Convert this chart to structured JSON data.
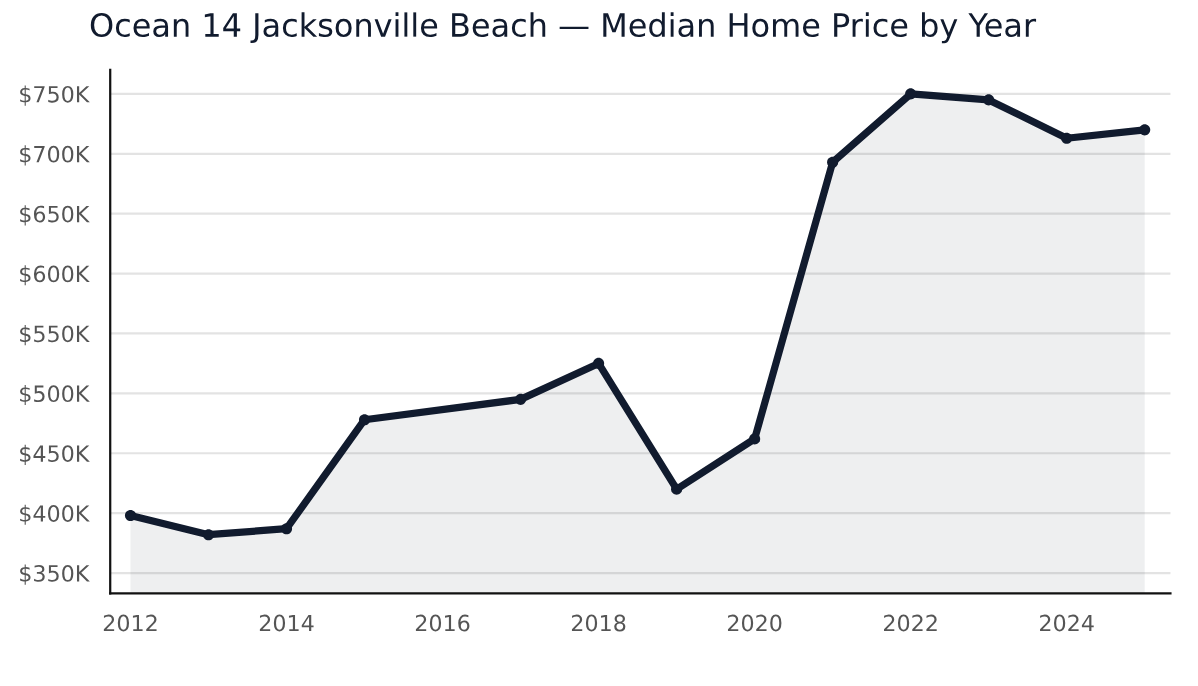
{
  "chart_data": {
    "type": "area",
    "title": "Ocean 14 Jacksonville Beach — Median Home Price by Year",
    "x": [
      2012,
      2013,
      2014,
      2015,
      2017,
      2018,
      2019,
      2020,
      2021,
      2022,
      2023,
      2024,
      2025
    ],
    "series": [
      {
        "color": "#111b2e",
        "values": [
          398,
          382,
          387,
          478,
          495,
          525,
          420,
          462,
          693,
          750,
          745,
          713,
          720
        ]
      }
    ],
    "marker": "circle",
    "line_style": "solid",
    "xlim": [
      2011.74,
      2025.33
    ],
    "xticks": [
      2012,
      2014,
      2016,
      2018,
      2020,
      2022,
      2024
    ],
    "ylim": [
      333,
      770
    ],
    "yticks": [
      {
        "value": 350,
        "label": "$350K"
      },
      {
        "value": 400,
        "label": "$400K"
      },
      {
        "value": 450,
        "label": "$450K"
      },
      {
        "value": 500,
        "label": "$500K"
      },
      {
        "value": 550,
        "label": "$550K"
      },
      {
        "value": 600,
        "label": "$600K"
      },
      {
        "value": 650,
        "label": "$650K"
      },
      {
        "value": 700,
        "label": "$700K"
      },
      {
        "value": 750,
        "label": "$750K"
      }
    ],
    "grid": "y",
    "legend": false
  }
}
